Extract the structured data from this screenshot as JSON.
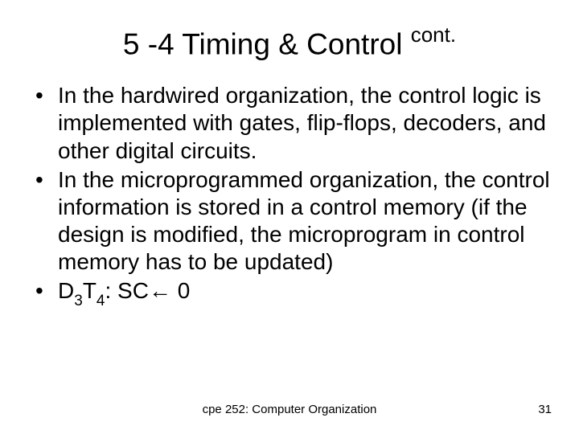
{
  "slide": {
    "title_main": "5 -4 Timing & Control ",
    "title_super": "cont.",
    "bullets": [
      {
        "text": "In the hardwired organization, the control logic is implemented with gates, flip-flops, decoders, and other digital circuits."
      },
      {
        "text": "In the microprogrammed organization, the control information is stored in a control memory (if the design is modified, the microprogram in control memory has to be updated)"
      }
    ],
    "bullet3_prefix": "D",
    "bullet3_sub1": "3",
    "bullet3_mid": "T",
    "bullet3_sub2": "4",
    "bullet3_suffix": ": SC← 0",
    "footer": "cpe 252: Computer Organization",
    "page": "31"
  },
  "style": {
    "background_color": "#ffffff",
    "text_color": "#000000",
    "title_fontsize": 37,
    "body_fontsize": 28,
    "footer_fontsize": 15,
    "font_family": "Arial"
  }
}
